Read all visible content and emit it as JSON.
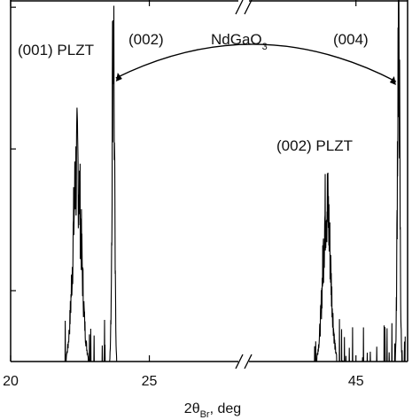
{
  "chart_data": {
    "type": "line",
    "title": "",
    "xlabel": {
      "base": "2θ",
      "subscript": "Br",
      "suffix": ", deg"
    },
    "ylabel": "",
    "x_axis": {
      "scale": "broken",
      "segments": [
        {
          "range": [
            20,
            28.4
          ]
        },
        {
          "range": [
            40,
            47.3
          ]
        }
      ],
      "tick_labels": [
        {
          "value": 20,
          "label": "20"
        },
        {
          "value": 25,
          "label": "25"
        },
        {
          "value": 45,
          "label": "45"
        }
      ]
    },
    "y_axis": {
      "range": [
        0,
        1.0
      ],
      "grid": false
    },
    "annotations": [
      {
        "text": "(001) PLZT"
      },
      {
        "text": "(002)"
      },
      {
        "text_main": "NdGaO",
        "text_sub": "3"
      },
      {
        "text": "(004)"
      },
      {
        "text": "(002) PLZT"
      }
    ],
    "series": [
      {
        "peaks": [
          {
            "x": 22.4,
            "height": 0.68,
            "fwhm": 0.35
          },
          {
            "x": 23.7,
            "height": 1.2,
            "fwhm": 0.1
          },
          {
            "x": 43.7,
            "height": 0.55,
            "fwhm": 0.4
          },
          {
            "x": 46.9,
            "height": 1.2,
            "fwhm": 0.12
          }
        ],
        "visible_range": [
          [
            21.8,
            24.0
          ],
          [
            43.0,
            47.2
          ]
        ]
      }
    ]
  }
}
